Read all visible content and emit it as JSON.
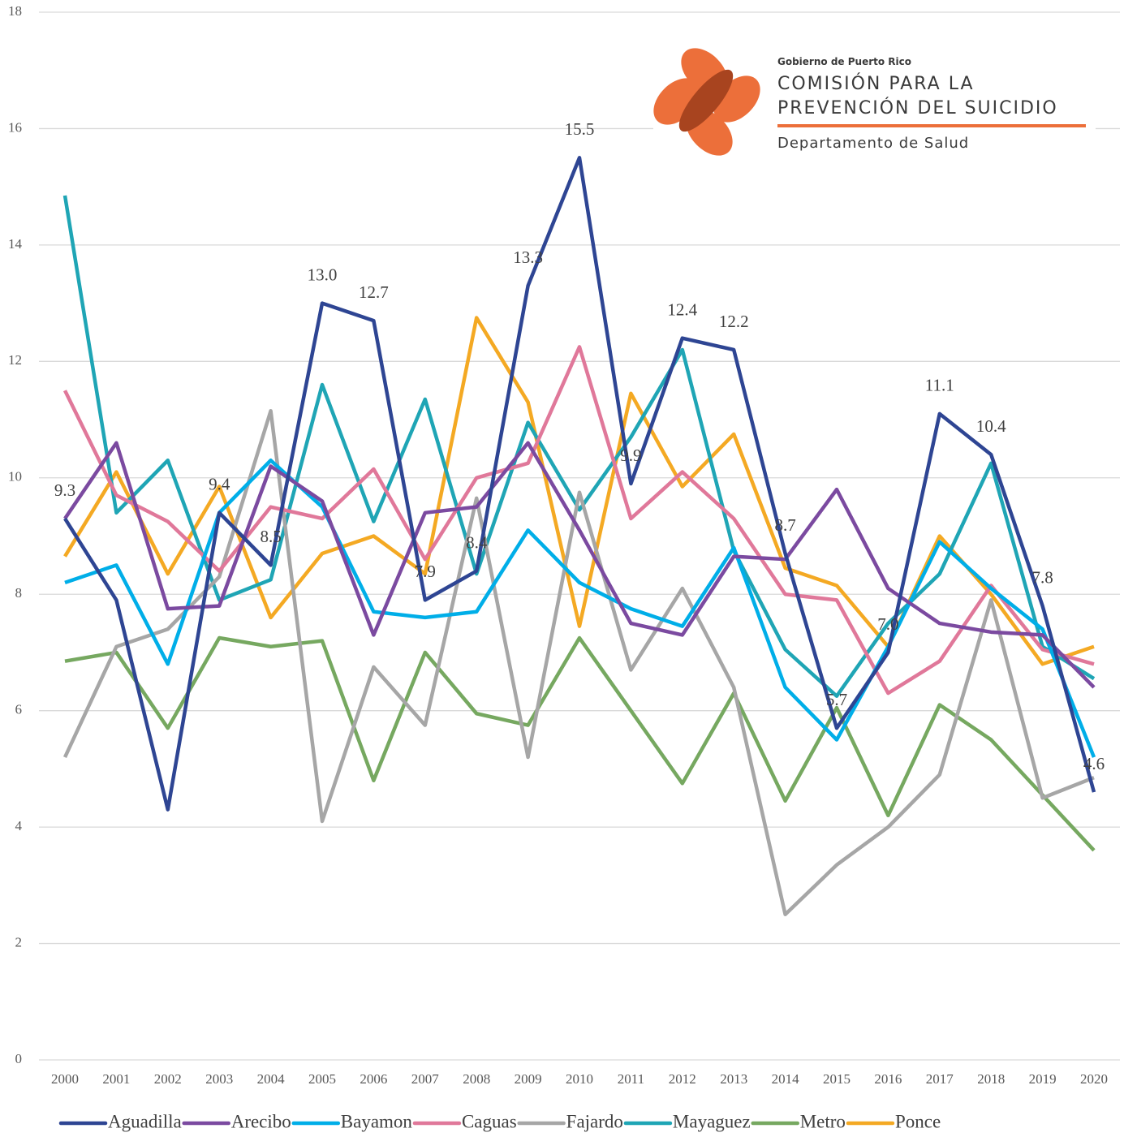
{
  "chart_data": {
    "type": "line",
    "categories": [
      "2000",
      "2001",
      "2002",
      "2003",
      "2004",
      "2005",
      "2006",
      "2007",
      "2008",
      "2009",
      "2010",
      "2011",
      "2012",
      "2013",
      "2014",
      "2015",
      "2016",
      "2017",
      "2018",
      "2019",
      "2020"
    ],
    "ylim": [
      0,
      18
    ],
    "yticks": [
      0,
      2,
      4,
      6,
      8,
      10,
      12,
      14,
      16,
      18
    ],
    "grid": true,
    "legend": "bottom",
    "series": [
      {
        "name": "Aguadilla",
        "color": "#2e4593",
        "values": [
          9.3,
          7.9,
          4.3,
          9.4,
          8.5,
          13.0,
          12.7,
          7.9,
          8.4,
          13.3,
          15.5,
          9.9,
          12.4,
          12.2,
          8.7,
          5.7,
          7.0,
          11.1,
          10.4,
          7.8,
          4.6
        ],
        "value_labels": [
          "9.3",
          null,
          null,
          "9.4",
          "8.5",
          "13.0",
          "12.7",
          "7.9",
          "8.4",
          "13.3",
          "15.5",
          "9.9",
          "12.4",
          "12.2",
          "8.7",
          "5.7",
          "7.0",
          "11.1",
          "10.4",
          "7.8",
          "4.6"
        ]
      },
      {
        "name": "Arecibo",
        "color": "#7b4aa0",
        "values": [
          9.3,
          10.6,
          7.75,
          7.8,
          10.2,
          9.6,
          7.3,
          9.4,
          9.5,
          10.6,
          9.1,
          7.5,
          7.3,
          8.65,
          8.6,
          9.8,
          8.1,
          7.5,
          7.35,
          7.3,
          6.4
        ]
      },
      {
        "name": "Bayamon",
        "color": "#00aee8",
        "values": [
          8.2,
          8.5,
          6.8,
          9.4,
          10.3,
          9.5,
          7.7,
          7.6,
          7.7,
          9.1,
          8.2,
          7.75,
          7.45,
          8.8,
          6.4,
          5.5,
          7.1,
          8.9,
          8.1,
          7.4,
          5.2
        ]
      },
      {
        "name": "Caguas",
        "color": "#e0789a",
        "values": [
          11.5,
          9.7,
          9.25,
          8.4,
          9.5,
          9.3,
          10.15,
          8.6,
          10.0,
          10.25,
          12.25,
          9.3,
          10.1,
          9.3,
          8.0,
          7.9,
          6.3,
          6.85,
          8.15,
          7.05,
          6.8
        ]
      },
      {
        "name": "Fajardo",
        "color": "#a6a6a6",
        "values": [
          5.2,
          7.1,
          7.4,
          8.3,
          11.15,
          4.1,
          6.75,
          5.75,
          9.65,
          5.2,
          9.75,
          6.7,
          8.1,
          6.4,
          2.5,
          3.35,
          4.0,
          4.9,
          7.9,
          4.5,
          4.85
        ]
      },
      {
        "name": "Mayaguez",
        "color": "#1fa5b5",
        "values": [
          14.85,
          9.4,
          10.3,
          7.9,
          8.25,
          11.6,
          9.25,
          11.35,
          8.35,
          10.95,
          9.45,
          10.7,
          12.2,
          8.75,
          7.05,
          6.25,
          7.5,
          8.35,
          10.25,
          7.1,
          6.55
        ]
      },
      {
        "name": "Metro",
        "color": "#76a860",
        "values": [
          6.85,
          7.0,
          5.7,
          7.25,
          7.1,
          7.2,
          4.8,
          7.0,
          5.95,
          5.75,
          7.25,
          6.0,
          4.75,
          6.3,
          4.45,
          6.05,
          4.2,
          6.1,
          5.5,
          4.55,
          3.6
        ]
      },
      {
        "name": "Ponce",
        "color": "#f4a923",
        "values": [
          8.65,
          10.1,
          8.35,
          9.85,
          7.6,
          8.7,
          9.0,
          8.35,
          12.75,
          11.3,
          7.45,
          11.45,
          9.85,
          10.75,
          8.45,
          8.15,
          7.1,
          9.0,
          8.0,
          6.8,
          7.1
        ]
      }
    ]
  },
  "logo": {
    "government": "Gobierno de Puerto Rico",
    "line1": "COMISIÓN PARA LA",
    "line2": "PREVENCIÓN DEL SUICIDIO",
    "department": "Departamento de Salud"
  }
}
